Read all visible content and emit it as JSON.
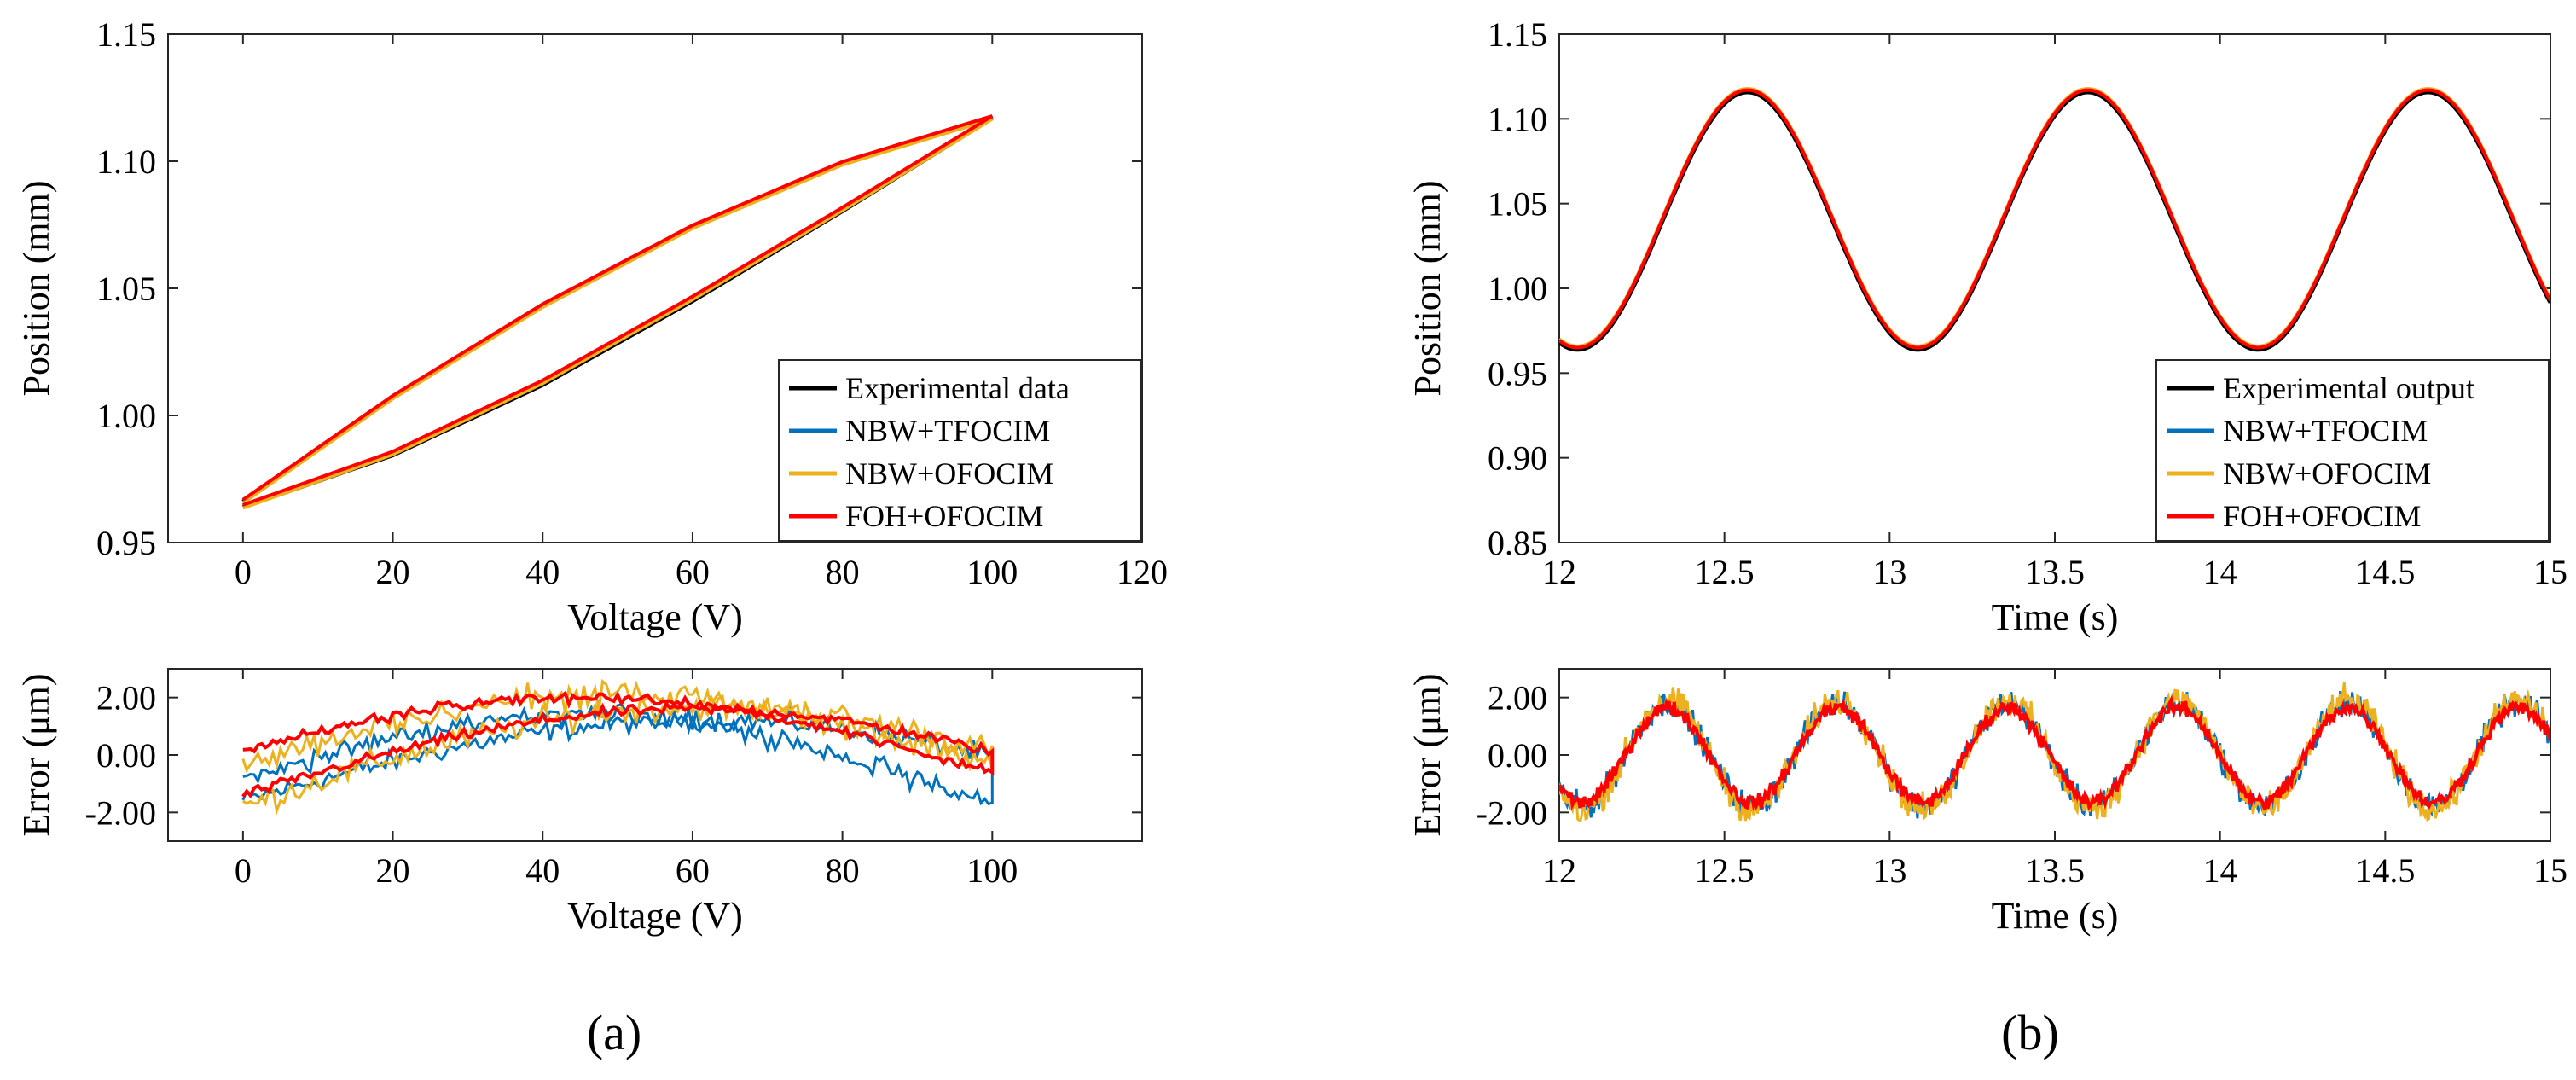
{
  "chart_data": [
    {
      "id": "a-top",
      "type": "line",
      "panel": "a",
      "xlabel": "Voltage (V)",
      "ylabel": "Position (mm)",
      "xlim": [
        -10,
        120
      ],
      "ylim": [
        0.95,
        1.15
      ],
      "xticks": [
        0,
        20,
        40,
        60,
        80,
        100,
        120
      ],
      "yticks": [
        0.95,
        1.0,
        1.05,
        1.1,
        1.15
      ],
      "xtick_labels": [
        "0",
        "20",
        "40",
        "60",
        "80",
        "100",
        "120"
      ],
      "ytick_labels": [
        "0.95",
        "1.00",
        "1.05",
        "1.10",
        "1.15"
      ],
      "legend_position": "bottom-right",
      "series": [
        {
          "name": "Experimental data",
          "color": "#000000"
        },
        {
          "name": "NBW+TFOCIM",
          "color": "#0072BD"
        },
        {
          "name": "NBW+OFOCIM",
          "color": "#EDB120"
        },
        {
          "name": "FOH+OFOCIM",
          "color": "#FF0000"
        }
      ],
      "hysteresis_loop": {
        "voltage_range": [
          0,
          100
        ],
        "position_min": 0.964,
        "position_max": 1.117,
        "ascending_branch": [
          [
            0,
            0.964
          ],
          [
            20,
            0.985
          ],
          [
            40,
            1.013
          ],
          [
            60,
            1.046
          ],
          [
            80,
            1.081
          ],
          [
            100,
            1.117
          ]
        ],
        "descending_branch": [
          [
            100,
            1.117
          ],
          [
            80,
            1.099
          ],
          [
            60,
            1.074
          ],
          [
            40,
            1.043
          ],
          [
            20,
            1.007
          ],
          [
            0,
            0.966
          ]
        ]
      }
    },
    {
      "id": "a-bottom",
      "type": "line",
      "panel": "a",
      "xlabel": "Voltage (V)",
      "ylabel": "Error (μm)",
      "xlim": [
        -10,
        120
      ],
      "ylim": [
        -3,
        3
      ],
      "xticks": [
        0,
        20,
        40,
        60,
        80,
        100
      ],
      "yticks": [
        -2,
        0,
        2
      ],
      "xtick_labels": [
        "0",
        "20",
        "40",
        "60",
        "80",
        "100"
      ],
      "ytick_labels": [
        "-2.00",
        "0.00",
        "2.00"
      ],
      "series": [
        {
          "name": "NBW+TFOCIM",
          "color": "#0072BD"
        },
        {
          "name": "NBW+OFOCIM",
          "color": "#EDB120"
        },
        {
          "name": "FOH+OFOCIM",
          "color": "#FF0000"
        }
      ]
    },
    {
      "id": "b-top",
      "type": "line",
      "panel": "b",
      "xlabel": "Time (s)",
      "ylabel": "Position (mm)",
      "xlim": [
        12,
        15
      ],
      "ylim": [
        0.85,
        1.15
      ],
      "xticks": [
        12,
        12.5,
        13,
        13.5,
        14,
        14.5,
        15
      ],
      "yticks": [
        0.85,
        0.9,
        0.95,
        1.0,
        1.05,
        1.1,
        1.15
      ],
      "xtick_labels": [
        "12",
        "12.5",
        "13",
        "13.5",
        "14",
        "14.5",
        "15"
      ],
      "ytick_labels": [
        "0.85",
        "0.90",
        "0.95",
        "1.00",
        "1.05",
        "1.10",
        "1.15"
      ],
      "legend_position": "bottom-right",
      "series": [
        {
          "name": "Experimental output",
          "color": "#000000"
        },
        {
          "name": "NBW+TFOCIM",
          "color": "#0072BD"
        },
        {
          "name": "NBW+OFOCIM",
          "color": "#EDB120"
        },
        {
          "name": "FOH+OFOCIM",
          "color": "#FF0000"
        }
      ],
      "sinusoid": {
        "min": 0.965,
        "max": 1.117,
        "period_s": 1.03,
        "peak_times": [
          12.57,
          13.6,
          14.63
        ],
        "trough_times": [
          13.08,
          14.1
        ]
      }
    },
    {
      "id": "b-bottom",
      "type": "line",
      "panel": "b",
      "xlabel": "Time (s)",
      "ylabel": "Error (μm)",
      "xlim": [
        12,
        15
      ],
      "ylim": [
        -3,
        3
      ],
      "xticks": [
        12,
        12.5,
        13,
        13.5,
        14,
        14.5,
        15
      ],
      "yticks": [
        -2,
        0,
        2
      ],
      "xtick_labels": [
        "12",
        "12.5",
        "13",
        "13.5",
        "14",
        "14.5",
        "15"
      ],
      "ytick_labels": [
        "-2.00",
        "0.00",
        "2.00"
      ],
      "series": [
        {
          "name": "NBW+TFOCIM",
          "color": "#0072BD"
        },
        {
          "name": "NBW+OFOCIM",
          "color": "#EDB120"
        },
        {
          "name": "FOH+OFOCIM",
          "color": "#FF0000"
        }
      ],
      "error_oscillation": {
        "amplitude_um": 1.7,
        "period_s": 0.515
      }
    }
  ],
  "panel_labels": {
    "a": "(a)",
    "b": "(b)"
  }
}
